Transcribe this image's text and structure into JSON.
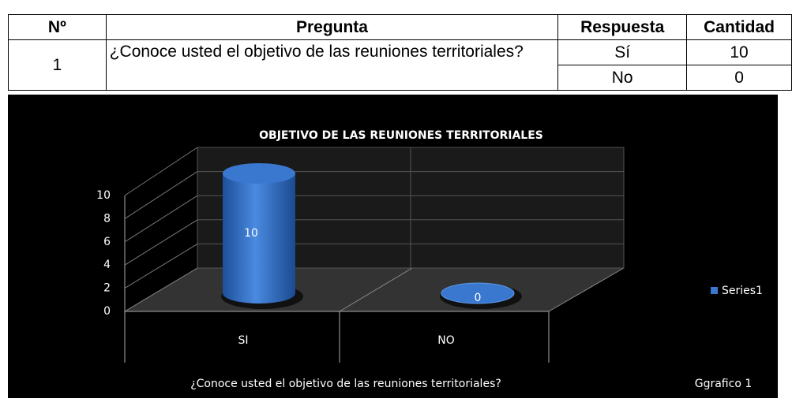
{
  "table": {
    "header": [
      "Nº",
      "Pregunta",
      "Respuesta",
      "Cantidad"
    ],
    "rows": [
      {
        "number": "1",
        "question": "¿Conoce usted el objetivo de las reuniones territoriales?",
        "answers": [
          {
            "answer": "Sí",
            "count": 10
          },
          {
            "answer": "No",
            "count": 0
          }
        ]
      }
    ]
  },
  "chart_data": {
    "type": "bar",
    "title": "OBJETIVO DE LAS REUNIONES TERRITORIALES",
    "categories": [
      "SI",
      "NO"
    ],
    "series": [
      {
        "name": "Series1",
        "color": "#3a78d0",
        "values": [
          10,
          0
        ]
      }
    ],
    "ylim": [
      0,
      10
    ],
    "yticks": [
      0,
      2,
      4,
      6,
      8,
      10
    ],
    "grid": true,
    "x_label": "¿Conoce  usted el objetivo de las reuniones territoriales?",
    "caption": "Ggrafico 1",
    "legend": "right"
  }
}
